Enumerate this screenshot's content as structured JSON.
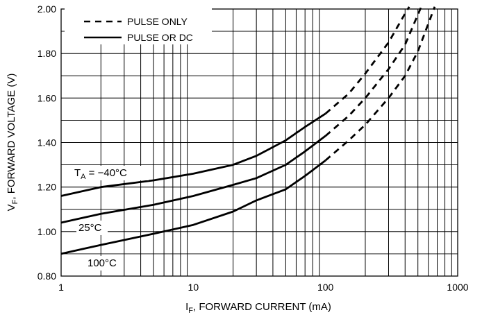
{
  "chart_data": {
    "type": "line",
    "x_scale": "log",
    "xlim": [
      1,
      1000
    ],
    "ylim": [
      0.8,
      2.0
    ],
    "x_ticks": [
      "1",
      "10",
      "100",
      "1000"
    ],
    "y_ticks": [
      "0.80",
      "1.00",
      "1.20",
      "1.40",
      "1.60",
      "1.80",
      "2.00"
    ],
    "xlabel": {
      "prefix": "I",
      "sub": "F",
      "suffix": ", FORWARD CURRENT (mA)"
    },
    "ylabel": {
      "prefix": "V",
      "sub": "F",
      "suffix": ", FORWARD VOLTAGE (V)"
    },
    "grid": true,
    "legend": {
      "position": "top-left",
      "items": [
        {
          "style": "dashed",
          "label": "PULSE ONLY"
        },
        {
          "style": "solid",
          "label": "PULSE OR DC"
        }
      ]
    },
    "series": [
      {
        "label": {
          "prefix": "T",
          "sub": "A",
          "suffix": " = −40°C"
        },
        "solid": [
          [
            1,
            1.16
          ],
          [
            2,
            1.2
          ],
          [
            5,
            1.23
          ],
          [
            10,
            1.26
          ],
          [
            20,
            1.3
          ],
          [
            30,
            1.34
          ],
          [
            50,
            1.41
          ],
          [
            70,
            1.47
          ],
          [
            100,
            1.53
          ]
        ],
        "dashed": [
          [
            100,
            1.53
          ],
          [
            150,
            1.62
          ],
          [
            200,
            1.71
          ],
          [
            300,
            1.85
          ],
          [
            400,
            1.98
          ],
          [
            430,
            2.01
          ]
        ]
      },
      {
        "label": {
          "prefix": "",
          "sub": "",
          "suffix": "25°C"
        },
        "solid": [
          [
            1,
            1.04
          ],
          [
            2,
            1.08
          ],
          [
            5,
            1.12
          ],
          [
            10,
            1.16
          ],
          [
            20,
            1.21
          ],
          [
            30,
            1.24
          ],
          [
            50,
            1.3
          ],
          [
            70,
            1.36
          ],
          [
            100,
            1.43
          ]
        ],
        "dashed": [
          [
            100,
            1.43
          ],
          [
            150,
            1.52
          ],
          [
            200,
            1.6
          ],
          [
            300,
            1.73
          ],
          [
            400,
            1.84
          ],
          [
            530,
            2.01
          ]
        ]
      },
      {
        "label": {
          "prefix": "",
          "sub": "",
          "suffix": "100°C"
        },
        "solid": [
          [
            1,
            0.9
          ],
          [
            2,
            0.94
          ],
          [
            5,
            0.99
          ],
          [
            10,
            1.03
          ],
          [
            20,
            1.09
          ],
          [
            30,
            1.14
          ],
          [
            50,
            1.19
          ],
          [
            70,
            1.25
          ],
          [
            100,
            1.32
          ]
        ],
        "dashed": [
          [
            100,
            1.32
          ],
          [
            150,
            1.41
          ],
          [
            200,
            1.48
          ],
          [
            300,
            1.6
          ],
          [
            400,
            1.7
          ],
          [
            500,
            1.81
          ],
          [
            670,
            2.01
          ]
        ]
      }
    ]
  }
}
